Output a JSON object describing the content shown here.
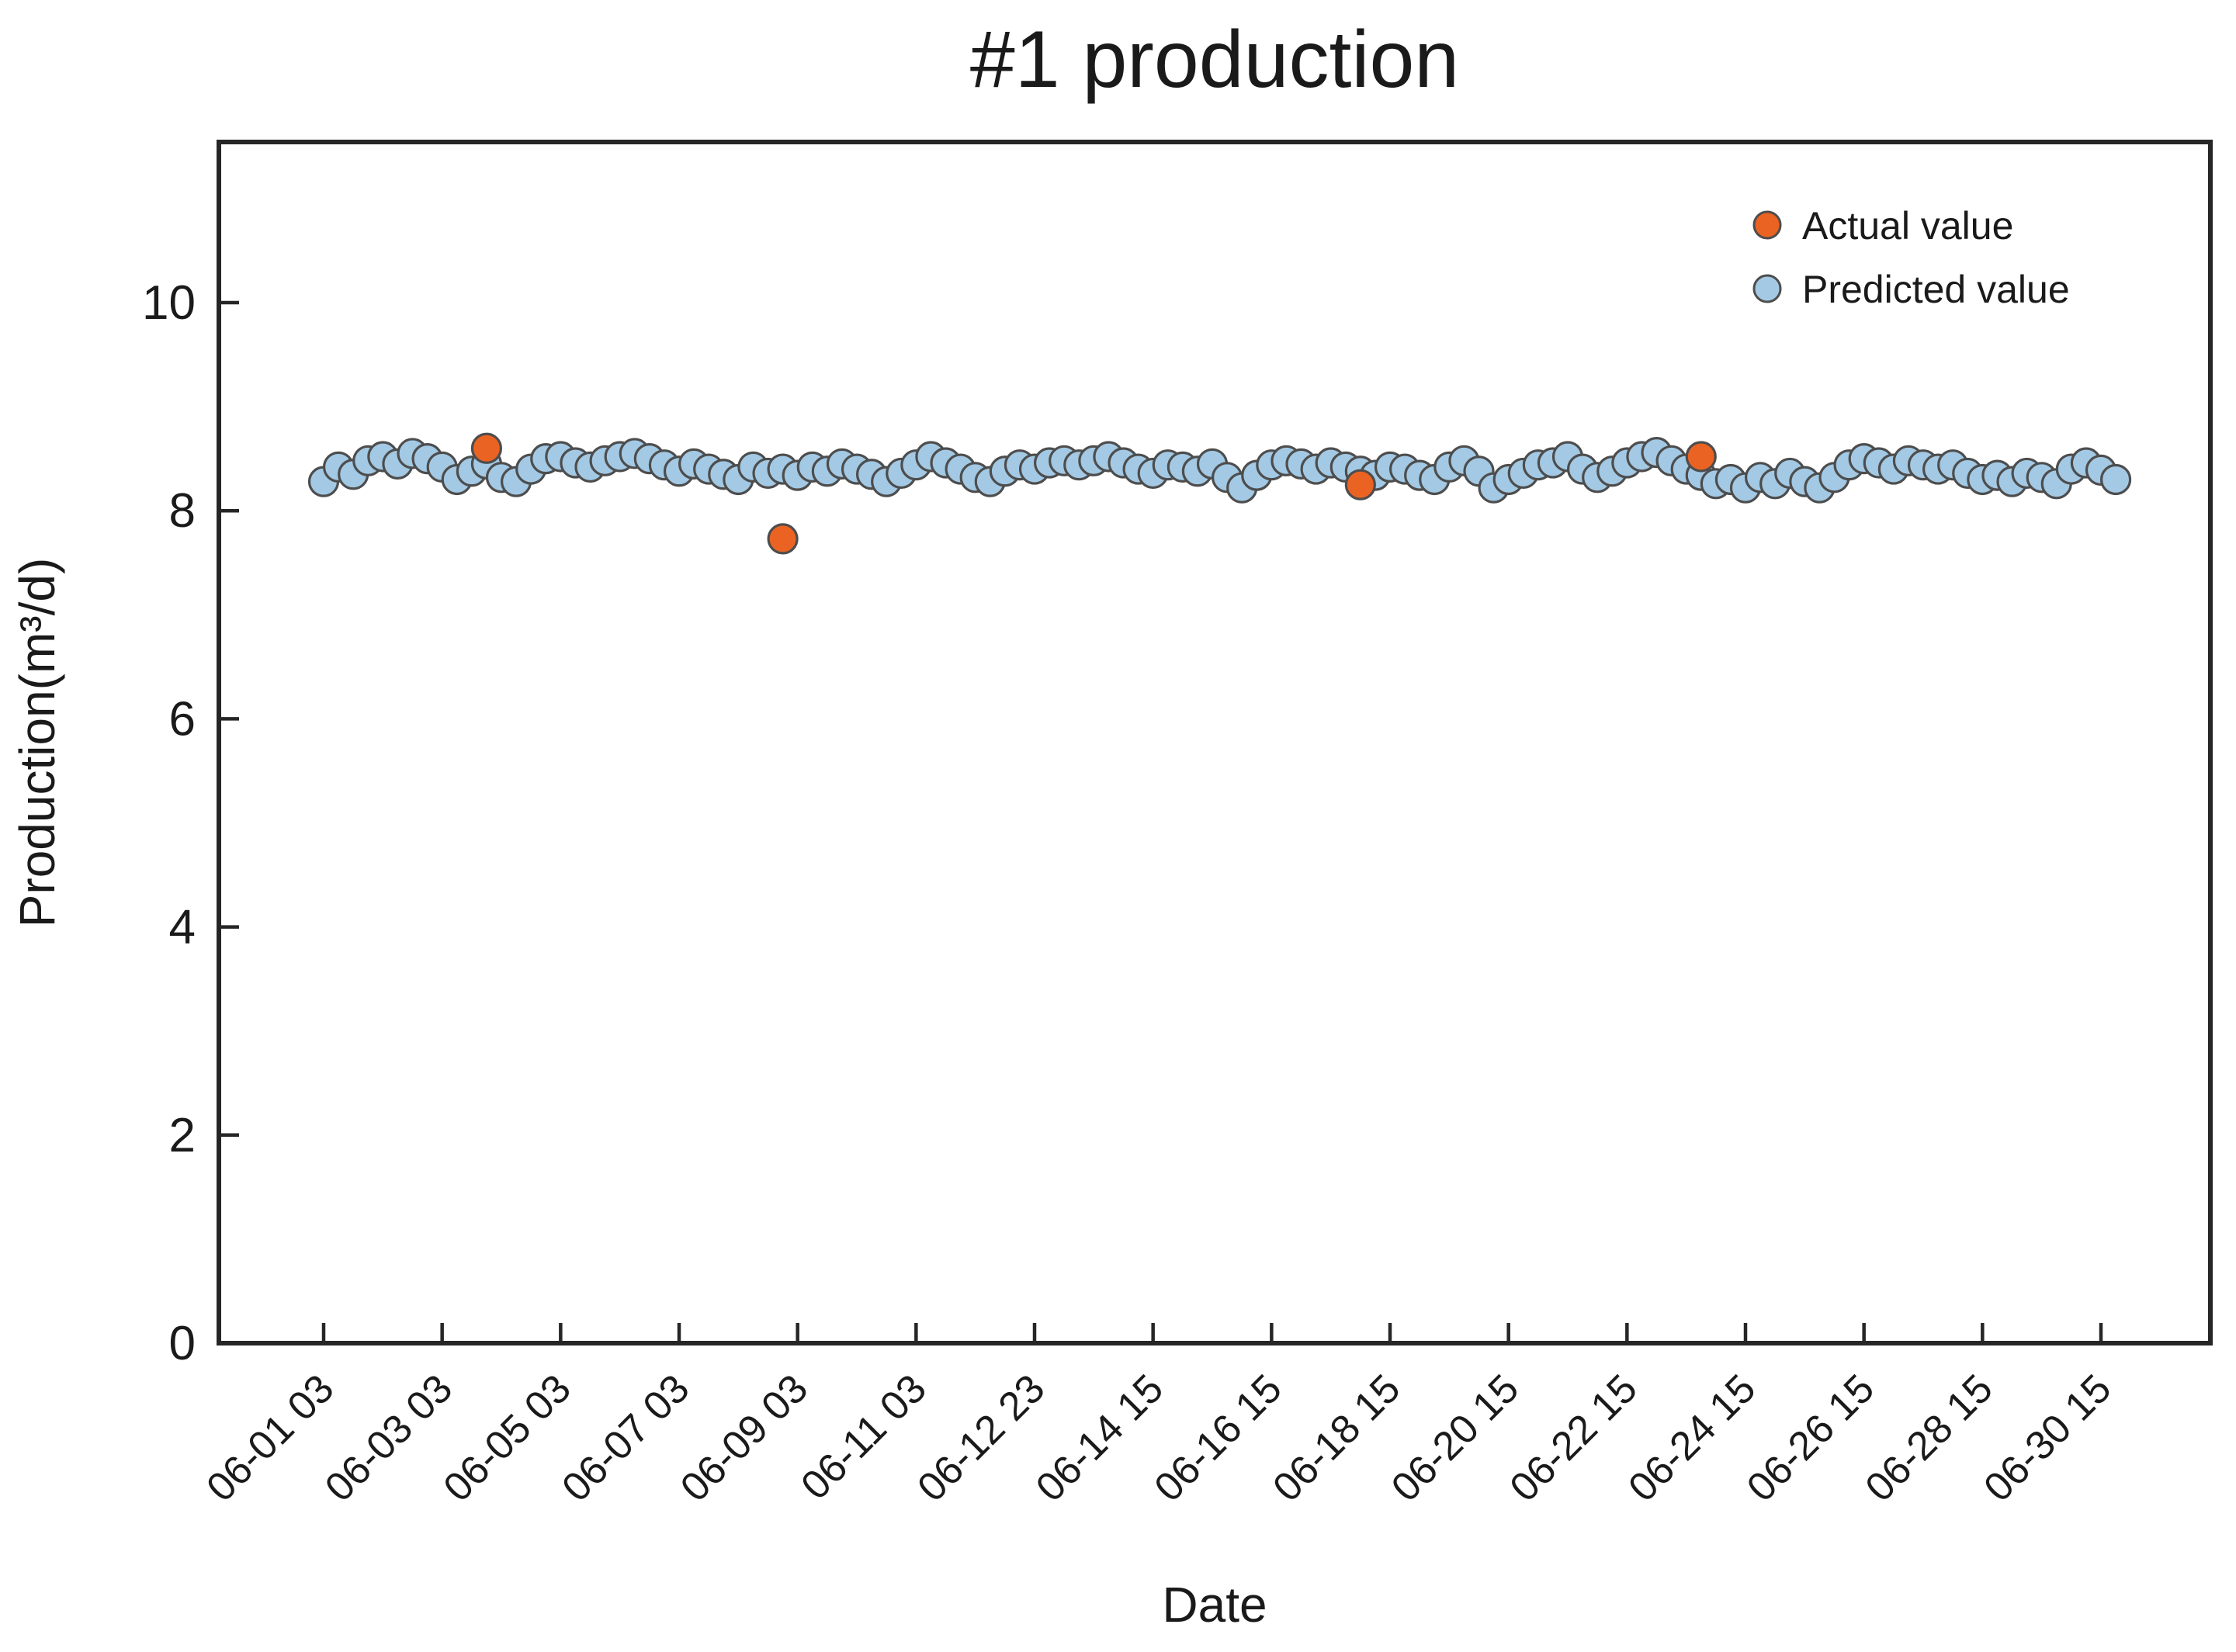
{
  "title": "#1 production",
  "axes": {
    "xlabel": "Date",
    "ylabel": "Production(m³/d)"
  },
  "legend": {
    "items": [
      {
        "label": "Actual value",
        "color": "#EA6322",
        "edge": "#4D4D4D"
      },
      {
        "label": "Predicted value",
        "color": "#A3C9E4",
        "edge": "#4D4D4D"
      }
    ],
    "position": "upper right"
  },
  "colors": {
    "actual": "#EA6322",
    "predicted": "#A3C9E4",
    "marker_edge": "#4D4D4D",
    "axis": "#262626",
    "text": "#1a1a1a",
    "background": "#ffffff"
  },
  "chart_data": {
    "type": "scatter",
    "title": "#1 production",
    "xlabel": "Date",
    "ylabel": "Production(m³/d)",
    "ylim": [
      0,
      11.55
    ],
    "y_ticks": [
      0,
      2,
      4,
      6,
      8,
      10
    ],
    "x_ticklabels": [
      "06-01 03",
      "06-03 03",
      "06-05 03",
      "06-07 03",
      "06-09 03",
      "06-11 03",
      "06-12 23",
      "06-14 15",
      "06-16 15",
      "06-18 15",
      "06-20 15",
      "06-22 15",
      "06-24 15",
      "06-26 15",
      "06-28 15",
      "06-30 15"
    ],
    "samples_per_xtick": 8,
    "grid": false,
    "legend_position": "upper right",
    "series": [
      {
        "name": "Predicted value",
        "marker": "circle",
        "color": "#A3C9E4",
        "values": [
          8.28,
          8.42,
          8.35,
          8.48,
          8.52,
          8.45,
          8.55,
          8.5,
          8.42,
          8.3,
          8.38,
          8.45,
          8.32,
          8.28,
          8.4,
          8.5,
          8.52,
          8.46,
          8.42,
          8.48,
          8.52,
          8.55,
          8.5,
          8.44,
          8.38,
          8.45,
          8.4,
          8.35,
          8.3,
          8.42,
          8.36,
          8.4,
          8.34,
          8.42,
          8.38,
          8.45,
          8.4,
          8.35,
          8.28,
          8.36,
          8.44,
          8.52,
          8.46,
          8.4,
          8.32,
          8.28,
          8.38,
          8.44,
          8.4,
          8.46,
          8.48,
          8.44,
          8.48,
          8.52,
          8.46,
          8.4,
          8.36,
          8.44,
          8.42,
          8.38,
          8.45,
          8.32,
          8.22,
          8.34,
          8.44,
          8.48,
          8.45,
          8.4,
          8.46,
          8.42,
          8.38,
          8.34,
          8.42,
          8.4,
          8.34,
          8.3,
          8.42,
          8.48,
          8.38,
          8.22,
          8.3,
          8.36,
          8.44,
          8.46,
          8.52,
          8.4,
          8.32,
          8.38,
          8.46,
          8.52,
          8.56,
          8.48,
          8.4,
          8.34,
          8.26,
          8.3,
          8.22,
          8.32,
          8.26,
          8.36,
          8.28,
          8.22,
          8.32,
          8.44,
          8.5,
          8.46,
          8.4,
          8.48,
          8.44,
          8.4,
          8.44,
          8.36,
          8.3,
          8.34,
          8.28,
          8.36,
          8.32,
          8.26,
          8.4,
          8.46,
          8.39,
          8.3
        ]
      },
      {
        "name": "Actual value",
        "marker": "circle",
        "color": "#EA6322",
        "points": [
          {
            "i": 11,
            "v": 8.6
          },
          {
            "i": 31,
            "v": 7.73
          },
          {
            "i": 70,
            "v": 8.25
          },
          {
            "i": 93,
            "v": 8.52
          }
        ]
      }
    ]
  }
}
